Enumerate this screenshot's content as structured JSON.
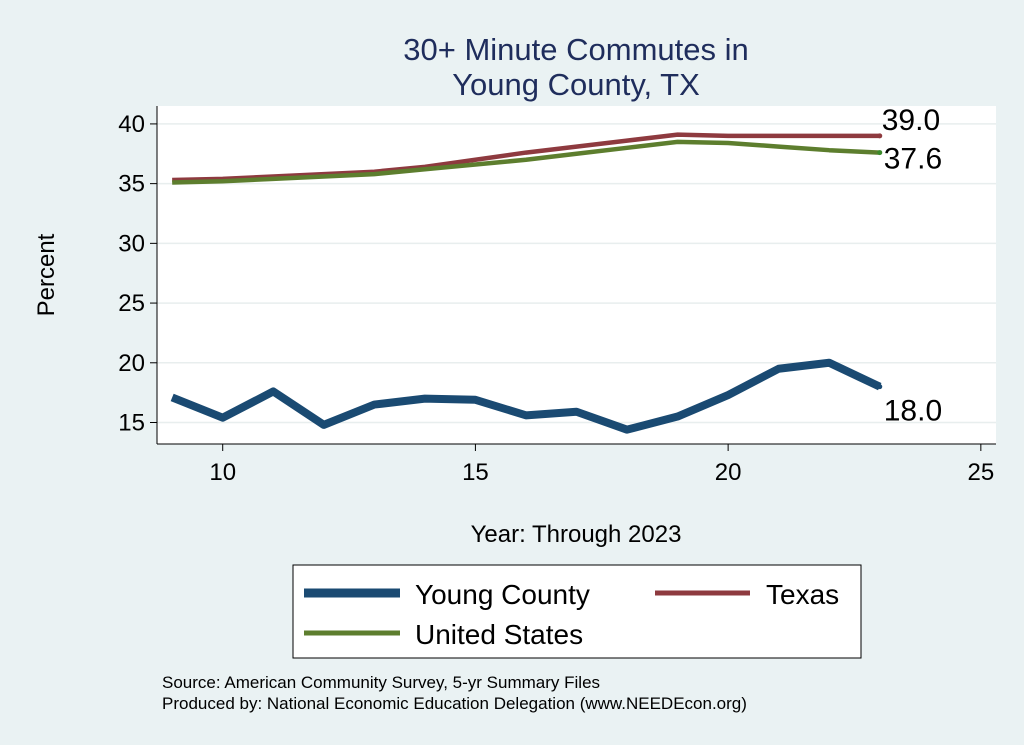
{
  "chart_data": {
    "type": "line",
    "title_lines": [
      "30+ Minute Commutes in",
      "Young County, TX"
    ],
    "xlabel": "Year: Through 2023",
    "ylabel": "Percent",
    "xlim": [
      8.7,
      25.3
    ],
    "ylim": [
      13.2,
      41.5
    ],
    "xticks": [
      10,
      15,
      20,
      25
    ],
    "yticks": [
      15,
      20,
      25,
      30,
      35,
      40
    ],
    "grid": true,
    "x": [
      9,
      10,
      11,
      12,
      13,
      14,
      15,
      16,
      17,
      18,
      19,
      20,
      21,
      22,
      23
    ],
    "series": [
      {
        "name": "Young County",
        "color": "#1a4a72",
        "values": [
          17.1,
          15.4,
          17.6,
          14.8,
          16.5,
          17.0,
          16.9,
          15.6,
          15.9,
          14.4,
          15.5,
          17.3,
          19.5,
          20.0,
          18.0
        ],
        "end_label": "18.0"
      },
      {
        "name": "Texas",
        "color": "#8e3a3f",
        "values": [
          35.3,
          35.4,
          35.6,
          35.8,
          36.0,
          36.4,
          37.0,
          37.6,
          38.1,
          38.6,
          39.1,
          39.0,
          39.0,
          39.0,
          39.0
        ],
        "end_label": "39.0"
      },
      {
        "name": "United States",
        "color": "#5d7e2e",
        "values": [
          35.1,
          35.2,
          35.4,
          35.6,
          35.8,
          36.2,
          36.6,
          37.0,
          37.5,
          38.0,
          38.5,
          38.4,
          38.1,
          37.8,
          37.6
        ],
        "end_label": "37.6"
      }
    ],
    "legend_position": "bottom",
    "notes": [
      "Source: American Community Survey, 5-yr Summary Files",
      "Produced by: National Economic Education Delegation (www.NEEDEcon.org)"
    ]
  }
}
